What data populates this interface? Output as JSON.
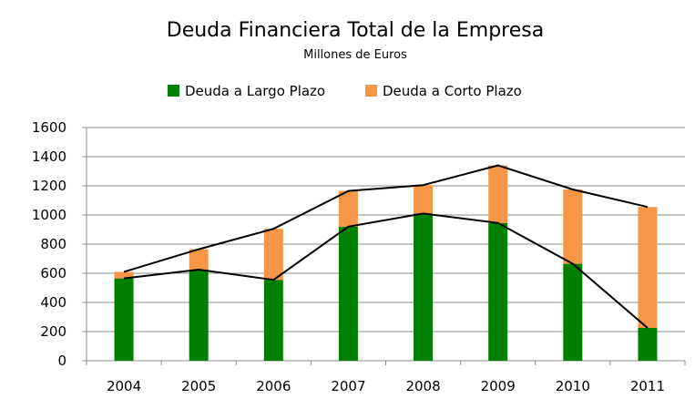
{
  "chart_data": {
    "type": "bar",
    "stacked": true,
    "title": "Deuda Financiera Total de la Empresa",
    "subtitle": "Millones de Euros",
    "categories": [
      "2004",
      "2005",
      "2006",
      "2007",
      "2008",
      "2009",
      "2010",
      "2011"
    ],
    "series": [
      {
        "name": "Deuda a Largo Plazo",
        "color": "#008000",
        "values": [
          565,
          625,
          555,
          920,
          1010,
          945,
          665,
          225
        ]
      },
      {
        "name": "Deuda a Corto Plazo",
        "color": "#f79646",
        "values": [
          45,
          140,
          350,
          245,
          195,
          395,
          510,
          830
        ]
      }
    ],
    "overlay_lines": [
      {
        "of": "Deuda a Largo Plazo",
        "color": "#000000"
      },
      {
        "of": "total",
        "color": "#000000"
      }
    ],
    "ylim": [
      0,
      1600
    ],
    "yticks": [
      0,
      200,
      400,
      600,
      800,
      1000,
      1200,
      1400,
      1600
    ],
    "grid": true,
    "legend_position": "top"
  }
}
